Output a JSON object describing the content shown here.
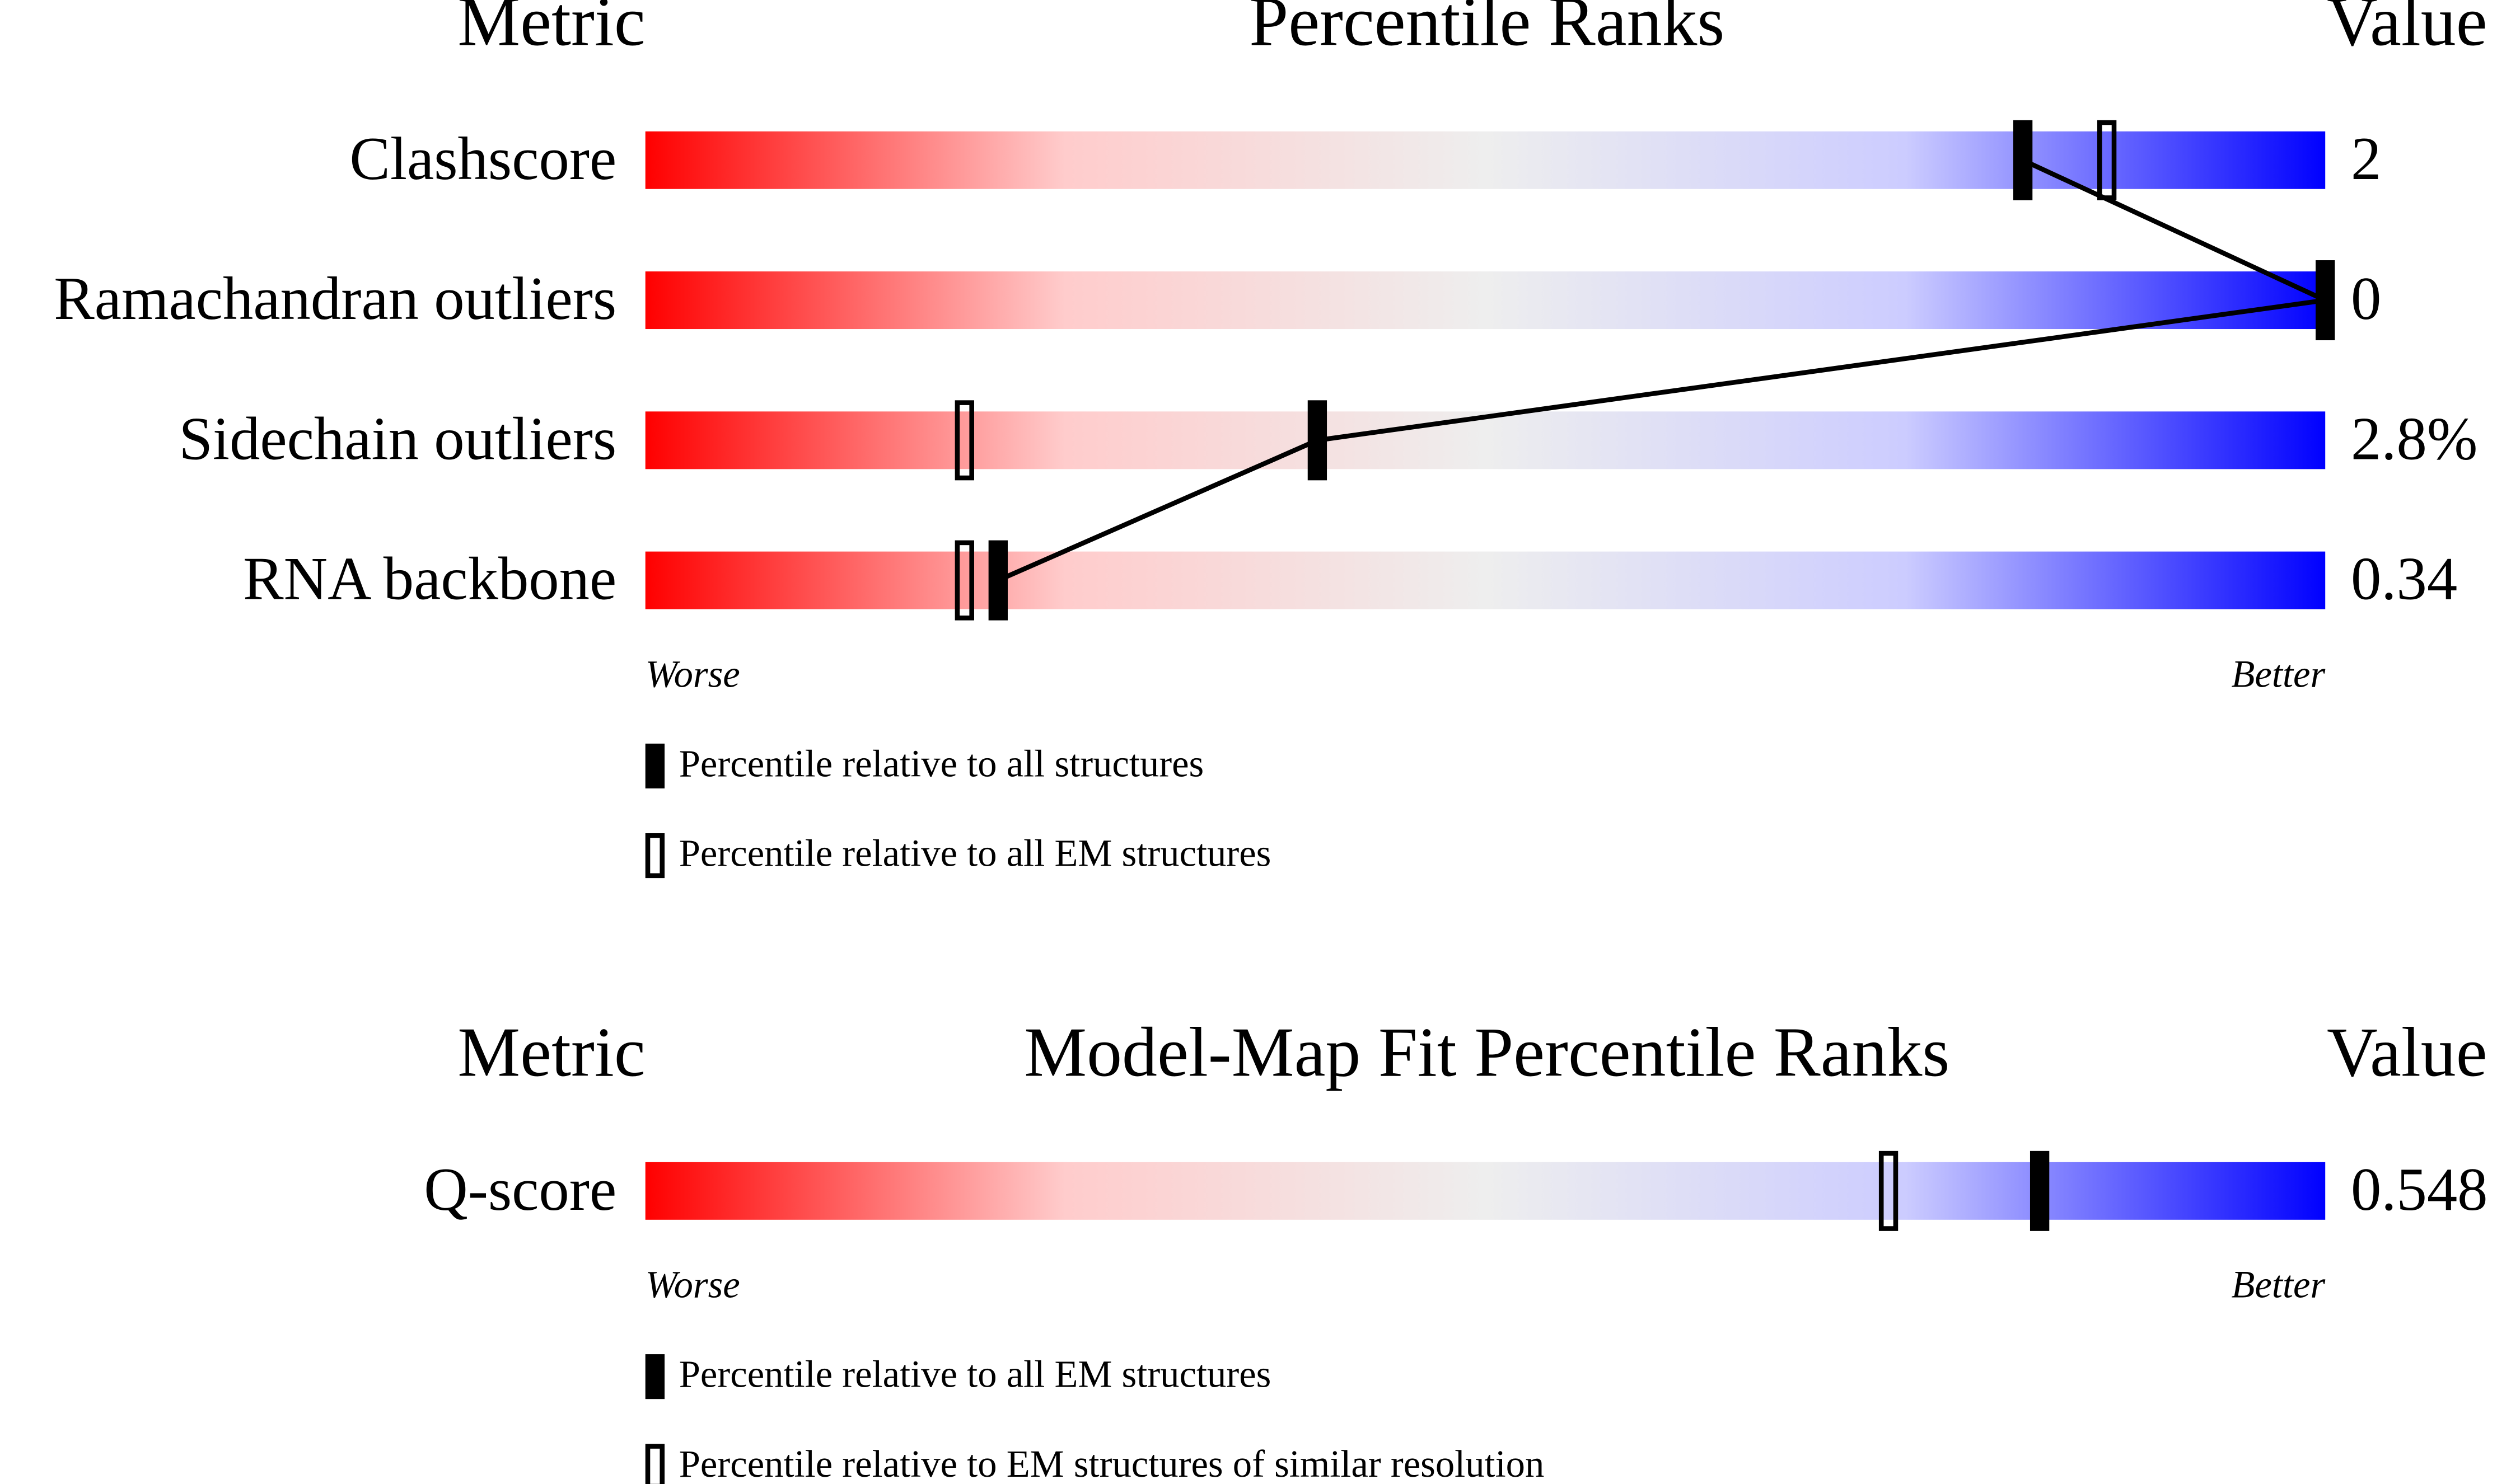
{
  "chart_data": [
    {
      "type": "percentile",
      "metric_header": "Metric",
      "title": "Percentile Ranks",
      "value_header": "Value",
      "categories": [
        "Clashscore",
        "Ramachandran outliers",
        "Sidechain outliers",
        "RNA backbone"
      ],
      "value_labels": [
        "2",
        "0",
        "2.8%",
        "0.34"
      ],
      "xlim": [
        0,
        100
      ],
      "gradient": [
        "#ff0000",
        "#ffcccc",
        "#eeeeee",
        "#ccccff",
        "#0000ff"
      ],
      "worse": "Worse",
      "better": "Better",
      "connect": true,
      "series": [
        {
          "name": "Percentile relative to all structures",
          "marker": "filled",
          "color": "#000000",
          "values": [
            82,
            100,
            40,
            21
          ]
        },
        {
          "name": "Percentile relative to all EM structures",
          "marker": "open",
          "color": "#000000",
          "values": [
            87,
            null,
            19,
            19
          ]
        }
      ]
    },
    {
      "type": "percentile",
      "metric_header": "Metric",
      "title": "Model-Map Fit Percentile Ranks",
      "value_header": "Value",
      "categories": [
        "Q-score"
      ],
      "value_labels": [
        "0.548"
      ],
      "xlim": [
        0,
        100
      ],
      "gradient": [
        "#ff0000",
        "#ffcccc",
        "#eeeeee",
        "#ccccff",
        "#0000ff"
      ],
      "worse": "Worse",
      "better": "Better",
      "connect": false,
      "series": [
        {
          "name": "Percentile relative to all EM structures",
          "marker": "filled",
          "color": "#000000",
          "values": [
            83
          ]
        },
        {
          "name": "Percentile relative to EM structures of similar resolution",
          "marker": "open",
          "color": "#000000",
          "values": [
            74
          ]
        }
      ]
    }
  ]
}
